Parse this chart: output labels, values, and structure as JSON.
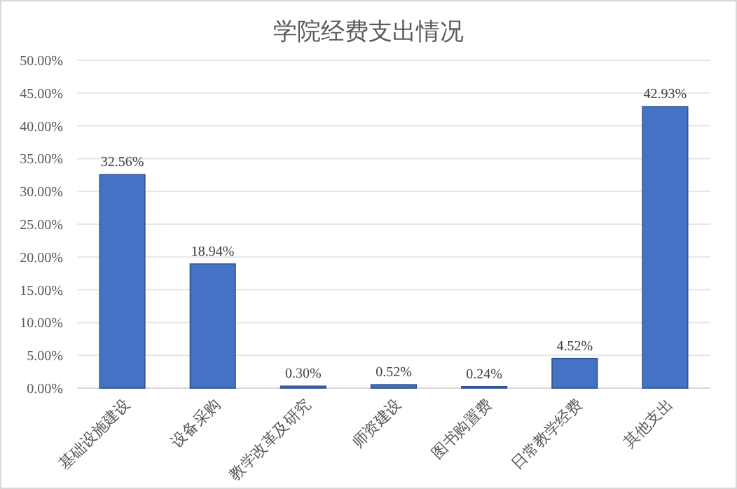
{
  "chart_data": {
    "type": "bar",
    "title": "学院经费支出情况",
    "categories": [
      "基础设施建设",
      "设备采购",
      "教学改革及研究",
      "师资建设",
      "图书购置费",
      "日常教学经费",
      "其他支出"
    ],
    "values": [
      32.56,
      18.94,
      0.3,
      0.52,
      0.24,
      4.52,
      42.93
    ],
    "value_labels": [
      "32.56%",
      "18.94%",
      "0.30%",
      "0.52%",
      "0.24%",
      "4.52%",
      "42.93%"
    ],
    "color": "#4472c4",
    "ylim": [
      0,
      50
    ],
    "yticks": [
      {
        "value": 0,
        "label": "0.00%"
      },
      {
        "value": 5,
        "label": "5.00%"
      },
      {
        "value": 10,
        "label": "10.00%"
      },
      {
        "value": 15,
        "label": "15.00%"
      },
      {
        "value": 20,
        "label": "20.00%"
      },
      {
        "value": 25,
        "label": "25.00%"
      },
      {
        "value": 30,
        "label": "30.00%"
      },
      {
        "value": 35,
        "label": "35.00%"
      },
      {
        "value": 40,
        "label": "40.00%"
      },
      {
        "value": 45,
        "label": "45.00%"
      },
      {
        "value": 50,
        "label": "50.00%"
      }
    ],
    "grid": "y"
  }
}
